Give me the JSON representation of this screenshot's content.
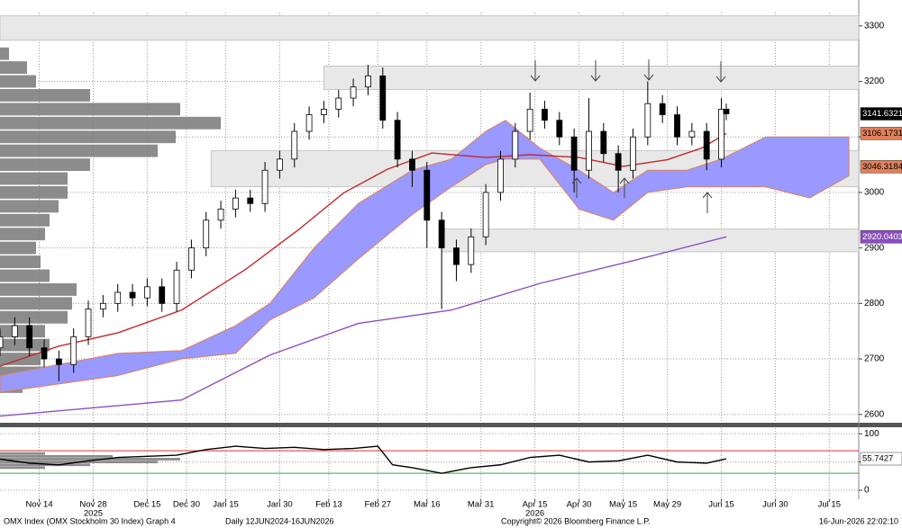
{
  "footer": {
    "title": "OMX Index (OMX Stockholm 30 Index) Graph 4",
    "range": "Daily 12JUN2024-16JUN2026",
    "copyright": "Copyright© 2026 Bloomberg Finance L.P.",
    "timestamp": "16-Jun-2026 22:02:10"
  },
  "chart_data": [
    {
      "type": "candlestick",
      "xlim": [
        0,
        175
      ],
      "ylim": [
        2585,
        3324
      ],
      "yticks": [
        2600,
        2700,
        2800,
        2900,
        3000,
        3100,
        3200,
        3300
      ],
      "grid": true,
      "zones": [
        {
          "from": 0,
          "low": 3274,
          "high": 3318
        },
        {
          "from": 66,
          "low": 3185,
          "high": 3228
        },
        {
          "from": 43,
          "low": 3010,
          "high": 3075
        },
        {
          "from": 90,
          "low": 2893,
          "high": 2934
        }
      ],
      "volume_profile": {
        "xlim": [
          0,
          100
        ],
        "color": "#7f7f7f",
        "levels": [
          2650,
          2675,
          2700,
          2725,
          2750,
          2775,
          2800,
          2825,
          2850,
          2875,
          2900,
          2925,
          2950,
          2975,
          3000,
          3025,
          3050,
          3075,
          3100,
          3125,
          3150,
          3175,
          3200,
          3225,
          3250
        ],
        "values": [
          10,
          20,
          18,
          22,
          20,
          30,
          32,
          34,
          22,
          18,
          16,
          20,
          22,
          26,
          30,
          30,
          40,
          70,
          78,
          98,
          80,
          40,
          16,
          12,
          4
        ]
      },
      "cloud": {
        "color": "#9999ff",
        "edge": "#e0805a",
        "marker": 3046.3184,
        "x": [
          0,
          24,
          37,
          48,
          55,
          64,
          73,
          84,
          92,
          99,
          103,
          110,
          118,
          125,
          132,
          140,
          147,
          156,
          165,
          173
        ],
        "upper": [
          2670,
          2710,
          2715,
          2760,
          2800,
          2900,
          2980,
          3040,
          3060,
          3110,
          3130,
          3080,
          3040,
          3000,
          3040,
          3040,
          3060,
          3100,
          3100,
          3100
        ],
        "lower": [
          2640,
          2670,
          2700,
          2710,
          2770,
          2810,
          2880,
          2960,
          3010,
          3050,
          3060,
          3060,
          2970,
          2950,
          3000,
          3010,
          3010,
          3010,
          2990,
          3030
        ]
      },
      "series": [
        {
          "color": "#c0282d",
          "x": [
            0,
            12,
            24,
            37,
            50,
            61,
            70,
            79,
            88,
            99,
            108,
            118,
            127,
            136,
            143,
            148
          ],
          "values": [
            2687,
            2723,
            2747,
            2788,
            2861,
            2934,
            2999,
            3042,
            3071,
            3063,
            3068,
            3063,
            3047,
            3059,
            3080,
            3106.1731
          ]
        },
        {
          "color": "#8a4fbf",
          "x": [
            0,
            37,
            55,
            73,
            92,
            110,
            129,
            148
          ],
          "values": [
            2597,
            2626,
            2707,
            2764,
            2788,
            2836,
            2877,
            2920.0403
          ]
        }
      ],
      "candles": {
        "x": [
          0,
          3,
          6,
          9,
          12,
          15,
          18,
          21,
          24,
          27,
          30,
          33,
          36,
          39,
          42,
          45,
          48,
          51,
          54,
          57,
          60,
          63,
          66,
          69,
          72,
          75,
          78,
          81,
          84,
          87,
          90,
          93,
          96,
          99,
          102,
          105,
          108,
          111,
          114,
          117,
          120,
          123,
          126,
          129,
          132,
          135,
          138,
          141,
          144,
          147,
          148
        ],
        "open": [
          2720,
          2740,
          2760,
          2720,
          2700,
          2690,
          2740,
          2790,
          2800,
          2820,
          2810,
          2830,
          2800,
          2860,
          2900,
          2950,
          2970,
          2990,
          2980,
          3040,
          3060,
          3110,
          3140,
          3150,
          3170,
          3190,
          3210,
          3130,
          3060,
          3040,
          2950,
          2900,
          2870,
          2920,
          3000,
          3060,
          3110,
          3150,
          3130,
          3100,
          3040,
          3110,
          3070,
          3040,
          3100,
          3160,
          3140,
          3100,
          3110,
          3060,
          3150
        ],
        "high": [
          2755,
          2775,
          2775,
          2735,
          2715,
          2755,
          2805,
          2815,
          2835,
          2835,
          2845,
          2845,
          2875,
          2915,
          2965,
          2985,
          3005,
          3005,
          3055,
          3075,
          3125,
          3155,
          3165,
          3185,
          3205,
          3230,
          3225,
          3145,
          3075,
          3055,
          2965,
          2915,
          2935,
          3015,
          3075,
          3125,
          3180,
          3165,
          3145,
          3115,
          3170,
          3125,
          3085,
          3115,
          3200,
          3175,
          3155,
          3125,
          3125,
          3170,
          3160
        ],
        "low": [
          2705,
          2725,
          2705,
          2685,
          2660,
          2675,
          2725,
          2775,
          2785,
          2795,
          2795,
          2785,
          2785,
          2845,
          2885,
          2935,
          2955,
          2965,
          2965,
          3025,
          3045,
          3095,
          3125,
          3135,
          3155,
          3175,
          3115,
          3045,
          3010,
          2900,
          2790,
          2840,
          2855,
          2905,
          2985,
          3045,
          3095,
          3115,
          3085,
          3000,
          3025,
          3055,
          3000,
          3025,
          3085,
          3125,
          3085,
          3085,
          3040,
          3045,
          3130
        ],
        "close": [
          2740,
          2760,
          2720,
          2700,
          2690,
          2740,
          2790,
          2800,
          2820,
          2810,
          2830,
          2800,
          2860,
          2900,
          2950,
          2970,
          2990,
          2980,
          3040,
          3060,
          3110,
          3140,
          3150,
          3170,
          3190,
          3210,
          3130,
          3060,
          3040,
          2950,
          2900,
          2870,
          2920,
          3000,
          3060,
          3110,
          3150,
          3130,
          3100,
          3040,
          3110,
          3070,
          3040,
          3100,
          3160,
          3140,
          3100,
          3110,
          3060,
          3150,
          3141.6321
        ]
      }
    },
    {
      "type": "line",
      "xlim": [
        0,
        175
      ],
      "ylim": [
        -16,
        110
      ],
      "yticks": [
        0,
        50,
        100
      ],
      "grid": true,
      "xticks": [
        {
          "value": 8,
          "label": "Nov 14"
        },
        {
          "value": 19,
          "label": "Nov 28"
        },
        {
          "value": 30,
          "label": "Dec 15"
        },
        {
          "value": 38,
          "label": "Dec 30"
        },
        {
          "value": 46,
          "label": "Jan 15"
        },
        {
          "value": 57,
          "label": "Jan 30"
        },
        {
          "value": 67,
          "label": "Feb 13"
        },
        {
          "value": 77,
          "label": "Feb 27"
        },
        {
          "value": 87,
          "label": "Mar 16"
        },
        {
          "value": 98,
          "label": "Mar 31"
        },
        {
          "value": 109,
          "label": "Apr 15"
        },
        {
          "value": 118,
          "label": "Apr 30"
        },
        {
          "value": 127,
          "label": "May 15"
        },
        {
          "value": 136,
          "label": "May 29"
        },
        {
          "value": 147,
          "label": "Jun 15"
        },
        {
          "value": 158,
          "label": "Jun 30"
        },
        {
          "value": 169,
          "label": "Jul 15"
        }
      ],
      "year_labels": [
        {
          "value": 19,
          "label": "2025"
        },
        {
          "value": 109,
          "label": "2026"
        }
      ],
      "hlines": [
        {
          "value": 70,
          "color": "#e03030"
        },
        {
          "value": 30,
          "color": "#30b030"
        }
      ],
      "profile": {
        "xlim": [
          0,
          100
        ],
        "color": "#7f7f7f",
        "levels": [
          40,
          45,
          50,
          55,
          60,
          65
        ],
        "values": [
          20,
          40,
          70,
          80,
          50,
          20
        ]
      },
      "series": [
        {
          "color": "#000000",
          "x": [
            0,
            6,
            12,
            18,
            24,
            30,
            36,
            42,
            48,
            54,
            60,
            66,
            72,
            77,
            80,
            84,
            90,
            96,
            102,
            108,
            114,
            120,
            126,
            132,
            138,
            144,
            148
          ],
          "values": [
            55,
            48,
            45,
            52,
            58,
            60,
            62,
            72,
            78,
            74,
            76,
            72,
            74,
            78,
            45,
            40,
            30,
            40,
            45,
            58,
            62,
            50,
            52,
            62,
            50,
            48,
            55.7427
          ]
        }
      ]
    }
  ]
}
